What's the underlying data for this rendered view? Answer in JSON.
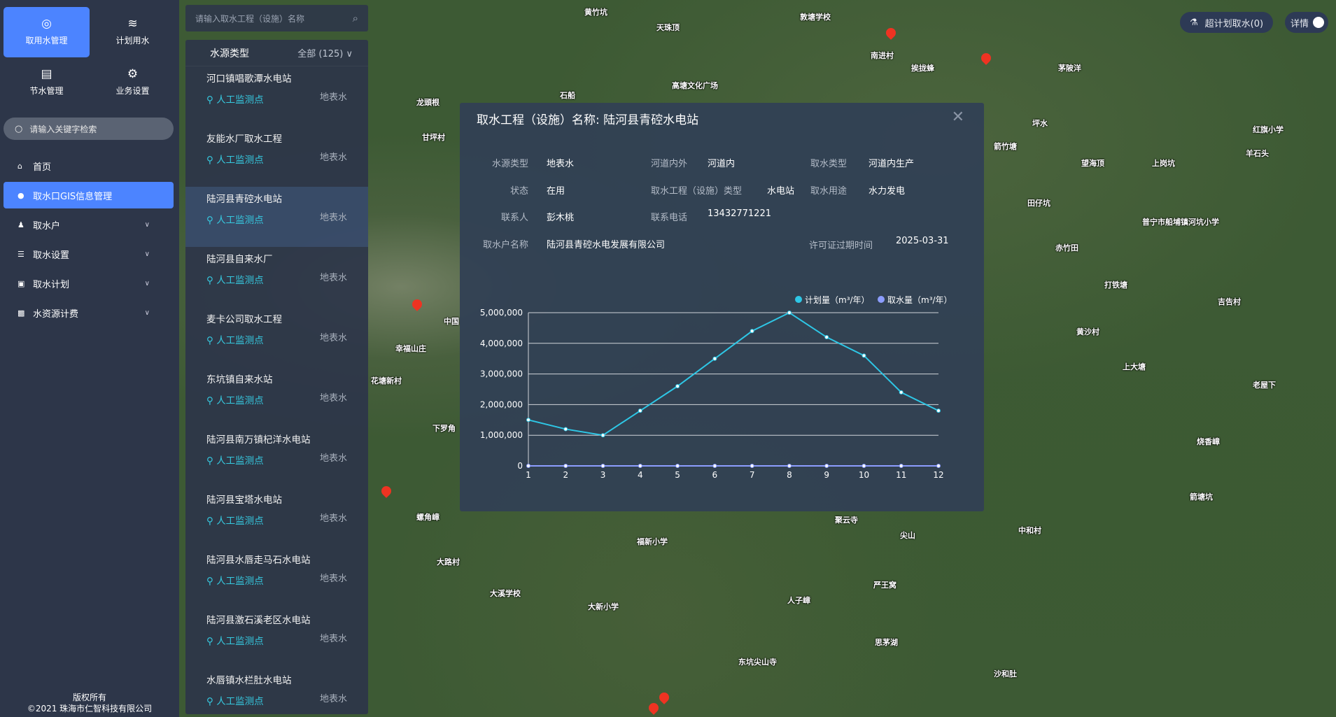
{
  "sidebar": {
    "tiles": [
      {
        "label": "取用水管理",
        "icon": "dashboard-icon",
        "active": true
      },
      {
        "label": "计划用水",
        "icon": "water-waves-icon"
      },
      {
        "label": "节水管理",
        "icon": "document-icon"
      },
      {
        "label": "业务设置",
        "icon": "gear-icon"
      }
    ],
    "search_placeholder": "请输入关键字检索",
    "nav": [
      {
        "label": "首页",
        "icon": "home-icon"
      },
      {
        "label": "取水口GIS信息管理",
        "icon": "location-icon",
        "active": true
      },
      {
        "label": "取水户",
        "icon": "user-icon",
        "expandable": true
      },
      {
        "label": "取水设置",
        "icon": "database-icon",
        "expandable": true
      },
      {
        "label": "取水计划",
        "icon": "calendar-icon",
        "expandable": true
      },
      {
        "label": "水资源计费",
        "icon": "chart-icon",
        "expandable": true
      }
    ],
    "copyright_1": "版权所有",
    "copyright_2": "©2021 珠海市仁智科技有限公司"
  },
  "list": {
    "search_placeholder": "请输入取水工程（设施）名称",
    "filter_label": "水源类型",
    "filter_value": "全部 (125)",
    "items": [
      {
        "name": "河口镇唱歌潭水电站",
        "tag": "人工监测点",
        "source": "地表水"
      },
      {
        "name": "友能水厂取水工程",
        "tag": "人工监测点",
        "source": "地表水"
      },
      {
        "name": "陆河县青硿水电站",
        "tag": "人工监测点",
        "source": "地表水",
        "active": true
      },
      {
        "name": "陆河县自来水厂",
        "tag": "人工监测点",
        "source": "地表水"
      },
      {
        "name": "麦卡公司取水工程",
        "tag": "人工监测点",
        "source": "地表水"
      },
      {
        "name": "东坑镇自来水站",
        "tag": "人工监测点",
        "source": "地表水"
      },
      {
        "name": "陆河县南万镇杞洋水电站",
        "tag": "人工监测点",
        "source": "地表水"
      },
      {
        "name": "陆河县宝塔水电站",
        "tag": "人工监测点",
        "source": "地表水"
      },
      {
        "name": "陆河县水唇走马石水电站",
        "tag": "人工监测点",
        "source": "地表水"
      },
      {
        "name": "陆河县激石溪老区水电站",
        "tag": "人工监测点",
        "source": "地表水"
      },
      {
        "name": "水唇镇水栏肚水电站",
        "tag": "人工监测点",
        "source": "地表水"
      }
    ]
  },
  "top_right": {
    "over_plan": "超计划取水(0)",
    "details": "详情",
    "details_on": true
  },
  "dialog": {
    "title": "取水工程（设施）名称: 陆河县青硿水电站",
    "fields": {
      "source_type_label": "水源类型",
      "source_type": "地表水",
      "river_label": "河道内外",
      "river": "河道内",
      "intake_type_label": "取水类型",
      "intake_type": "河道内生产",
      "status_label": "状态",
      "status": "在用",
      "facility_type_label": "取水工程（设施）类型",
      "facility_type": "水电站",
      "use_label": "取水用途",
      "use": "水力发电",
      "contact_label": "联系人",
      "contact": "彭木桃",
      "phone_label": "联系电话",
      "phone": "13432771221",
      "owner_label": "取水户名称",
      "owner": "陆河县青硿水电发展有限公司",
      "expiry_label": "许可证过期时间",
      "expiry": "2025-03-31"
    }
  },
  "chart_data": {
    "type": "line",
    "x": [
      "1",
      "2",
      "3",
      "4",
      "5",
      "6",
      "7",
      "8",
      "9",
      "10",
      "11",
      "12"
    ],
    "yticks": [
      "0",
      "1,000,000",
      "2,000,000",
      "3,000,000",
      "4,000,000",
      "5,000,000"
    ],
    "ylim": [
      0,
      5000000
    ],
    "grid": true,
    "legend": "top-right",
    "series": [
      {
        "name": "计划量（m³/年）",
        "color": "#2ec7e6",
        "values": [
          1500000,
          1200000,
          1000000,
          1800000,
          2600000,
          3500000,
          4400000,
          5000000,
          4200000,
          3600000,
          2400000,
          1800000
        ]
      },
      {
        "name": "取水量（m³/年）",
        "color": "#8c9dff",
        "values": [
          0,
          0,
          0,
          0,
          0,
          0,
          0,
          0,
          0,
          0,
          0,
          0
        ]
      }
    ]
  },
  "map_labels": [
    "黄竹坑",
    "天珠顶",
    "敦塘学校",
    "南进村",
    "挨拢蜂",
    "茅陂洋",
    "高塘文化广场",
    "石船",
    "龙頭根",
    "甘坪村",
    "中国",
    "幸福山庄",
    "花塘新村",
    "下罗角",
    "螺角嶂",
    "福新小学",
    "大路村",
    "大溪学校",
    "大新小学",
    "红旗小学",
    "羊石头",
    "普宁市船埔镇河坑小学",
    "打铁塘",
    "吉告村",
    "黄沙村",
    "上大塘",
    "老屋下",
    "烧香嶂",
    "聚云寺",
    "尖山",
    "人子嶂",
    "东坑尖山寺",
    "严王窝",
    "思茅湖",
    "中和村",
    "箭塘坑",
    "沙和肚",
    "坪水",
    "箭竹塘",
    "望海顶",
    "上岗坑",
    "田仔坑",
    "赤竹田"
  ]
}
